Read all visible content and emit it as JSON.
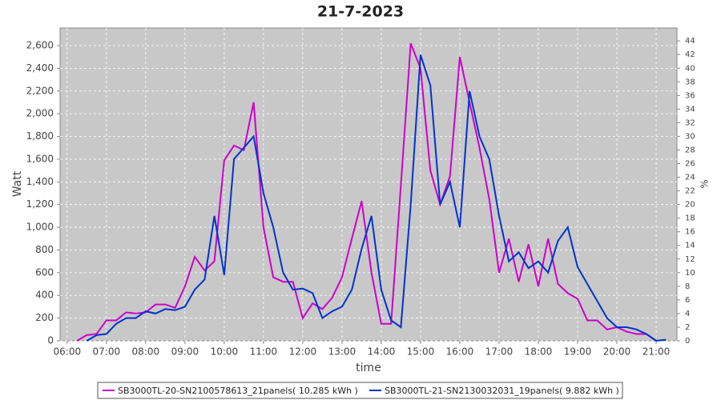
{
  "chart_data": {
    "type": "line",
    "title": "21-7-2023",
    "x_label": "time",
    "y_label": "Watt",
    "y2_label": "%",
    "xlim": [
      5.82,
      21.53
    ],
    "xticks": [
      {
        "value": 6,
        "label": "06:00"
      },
      {
        "value": 7,
        "label": "07:00"
      },
      {
        "value": 8,
        "label": "08:00"
      },
      {
        "value": 9,
        "label": "09:00"
      },
      {
        "value": 10,
        "label": "10:00"
      },
      {
        "value": 11,
        "label": "11:00"
      },
      {
        "value": 12,
        "label": "12:00"
      },
      {
        "value": 13,
        "label": "13:00"
      },
      {
        "value": 14,
        "label": "14:00"
      },
      {
        "value": 15,
        "label": "15:00"
      },
      {
        "value": 16,
        "label": "16:00"
      },
      {
        "value": 17,
        "label": "17:00"
      },
      {
        "value": 18,
        "label": "18:00"
      },
      {
        "value": 19,
        "label": "19:00"
      },
      {
        "value": 20,
        "label": "20:00"
      },
      {
        "value": 21,
        "label": "21:00"
      }
    ],
    "ylim": [
      0,
      2755
    ],
    "yticks": [
      0,
      200,
      400,
      600,
      800,
      {
        "value": 1000,
        "label": "1,000"
      },
      {
        "value": 1200,
        "label": "1,200"
      },
      {
        "value": 1400,
        "label": "1,400"
      },
      {
        "value": 1600,
        "label": "1,600"
      },
      {
        "value": 1800,
        "label": "1,800"
      },
      {
        "value": 2000,
        "label": "2,000"
      },
      {
        "value": 2200,
        "label": "2,200"
      },
      {
        "value": 2400,
        "label": "2,400"
      },
      {
        "value": 2600,
        "label": "2,600"
      }
    ],
    "y2lim": [
      0,
      45.9
    ],
    "y2ticks": [
      0,
      2,
      4,
      6,
      8,
      10,
      12,
      14,
      16,
      18,
      20,
      22,
      24,
      26,
      28,
      30,
      32,
      34,
      36,
      38,
      40,
      42,
      44
    ],
    "grid": true,
    "series": [
      {
        "name": "SB3000TL-20-SN2100578613_21panels( 10.285 kWh )",
        "color": "#cc00cc",
        "x": [
          6.25,
          6.5,
          6.75,
          7.0,
          7.25,
          7.5,
          7.75,
          8.0,
          8.25,
          8.5,
          8.75,
          9.0,
          9.25,
          9.5,
          9.75,
          10.0,
          10.25,
          10.5,
          10.75,
          11.0,
          11.25,
          11.5,
          11.75,
          12.0,
          12.25,
          12.5,
          12.75,
          13.0,
          13.25,
          13.5,
          13.75,
          14.0,
          14.25,
          14.5,
          14.75,
          15.0,
          15.25,
          15.5,
          15.75,
          16.0,
          16.25,
          16.5,
          16.75,
          17.0,
          17.25,
          17.5,
          17.75,
          18.0,
          18.25,
          18.5,
          18.75,
          19.0,
          19.25,
          19.5,
          19.75,
          20.0,
          20.25,
          20.5,
          20.75,
          21.0
        ],
        "values": [
          0,
          50,
          60,
          180,
          180,
          250,
          240,
          250,
          320,
          320,
          290,
          480,
          740,
          620,
          700,
          1590,
          1720,
          1680,
          2100,
          1000,
          560,
          520,
          520,
          200,
          330,
          280,
          380,
          560,
          900,
          1230,
          600,
          150,
          150,
          1370,
          2620,
          2400,
          1500,
          1200,
          1450,
          2500,
          2100,
          1700,
          1250,
          600,
          900,
          520,
          850,
          480,
          900,
          500,
          420,
          370,
          180,
          180,
          100,
          120,
          80,
          60,
          60,
          0
        ]
      },
      {
        "name": "SB3000TL-21-SN2130032031_19panels( 9.882 kWh )",
        "color": "#0033cc",
        "x": [
          6.5,
          6.75,
          7.0,
          7.25,
          7.5,
          7.75,
          8.0,
          8.25,
          8.5,
          8.75,
          9.0,
          9.25,
          9.5,
          9.75,
          10.0,
          10.25,
          10.5,
          10.75,
          11.0,
          11.25,
          11.5,
          11.75,
          12.0,
          12.25,
          12.5,
          12.75,
          13.0,
          13.25,
          13.5,
          13.75,
          14.0,
          14.25,
          14.5,
          14.75,
          15.0,
          15.25,
          15.5,
          15.75,
          16.0,
          16.25,
          16.5,
          16.75,
          17.0,
          17.25,
          17.5,
          17.75,
          18.0,
          18.25,
          18.5,
          18.75,
          19.0,
          19.25,
          19.5,
          19.75,
          20.0,
          20.25,
          20.5,
          20.75,
          21.0,
          21.25
        ],
        "values": [
          0,
          50,
          60,
          150,
          200,
          200,
          260,
          240,
          280,
          270,
          300,
          450,
          540,
          1100,
          580,
          1600,
          1700,
          1800,
          1300,
          1000,
          600,
          450,
          460,
          420,
          200,
          260,
          300,
          450,
          810,
          1100,
          450,
          180,
          120,
          1200,
          2520,
          2250,
          1200,
          1400,
          1000,
          2200,
          1800,
          1600,
          1100,
          700,
          780,
          640,
          700,
          600,
          880,
          1000,
          650,
          500,
          350,
          200,
          120,
          120,
          100,
          60,
          0,
          10
        ]
      }
    ]
  }
}
